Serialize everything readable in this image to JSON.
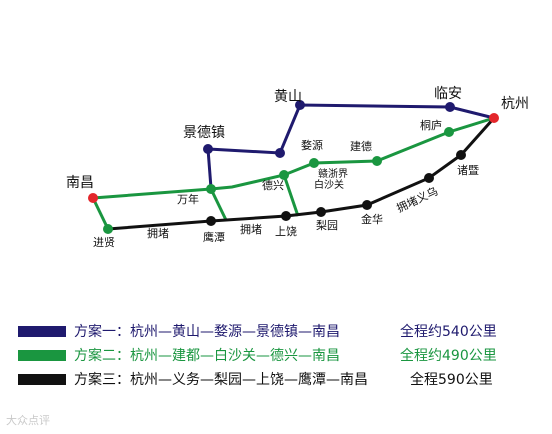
{
  "map": {
    "cities": {
      "hangzhou": "杭州",
      "linan": "临安",
      "huangshan": "黄山",
      "jingdezhen": "景德镇",
      "nanchang": "南昌",
      "tonglu": "桐庐",
      "jiande": "建德",
      "wuyuan": "婺源",
      "wannian": "万年",
      "dexing": "德兴",
      "ganzhejie": "赣浙界",
      "baishaguan": "白沙关",
      "zhuji": "诸暨",
      "yongzhu_yiwu": "拥堵义乌",
      "jinhua": "金华",
      "liyuan": "梨园",
      "shangrao": "上饶",
      "yongdu1": "拥堵",
      "yongdu2": "拥堵",
      "yingtan": "鹰潭",
      "jinxian": "进贤"
    },
    "colors": {
      "plan1": "#1f1a6e",
      "plan2": "#1a9640",
      "plan3": "#111111",
      "endpoint": "#e3262b"
    }
  },
  "legend": [
    {
      "name": "方案一：",
      "route": "杭州—黄山—婺源—景德镇—南昌",
      "distance": "全程约540公里",
      "color": "#1f1a6e"
    },
    {
      "name": "方案二：",
      "route": "杭州—建都—白沙关—德兴—南昌",
      "distance": "全程约490公里",
      "color": "#1a9640"
    },
    {
      "name": "方案三：",
      "route": "杭州—义务—梨园—上饶—鹰潭—南昌",
      "distance": "全程590公里",
      "color": "#111111"
    }
  ],
  "watermark": "大众点评"
}
